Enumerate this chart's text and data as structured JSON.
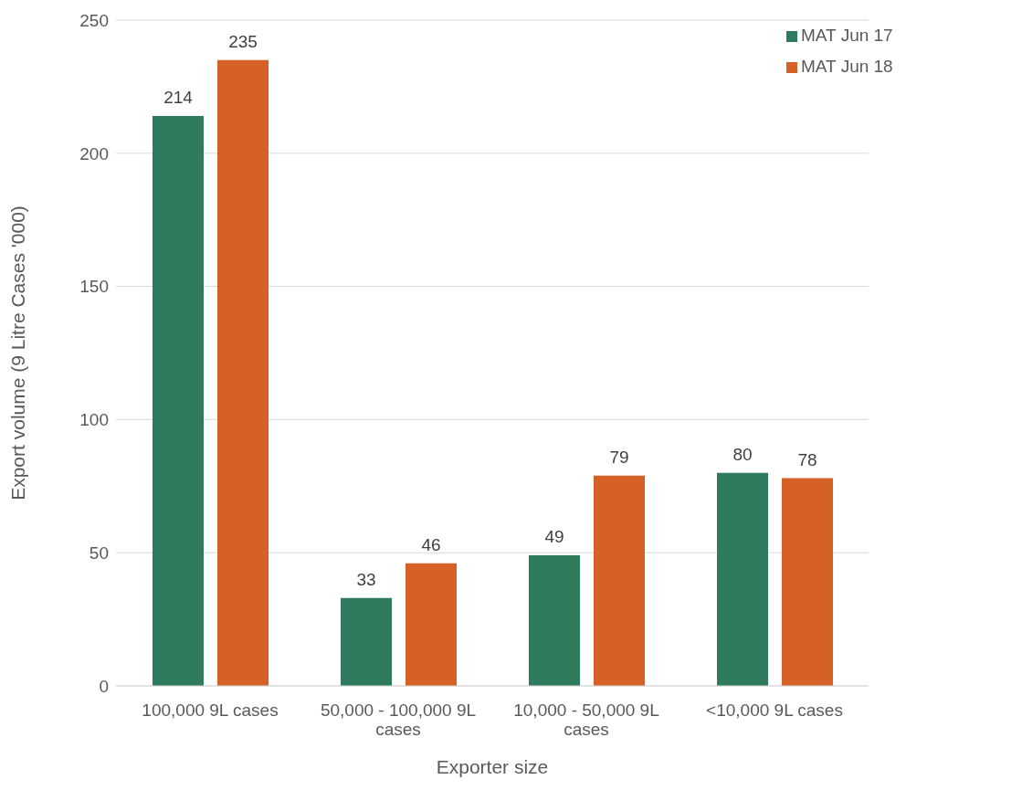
{
  "chart_data": {
    "type": "bar",
    "xlabel": "Exporter size",
    "ylabel": "Export volume (9 Litre Cases '000)",
    "categories": [
      "100,000 9L cases",
      "50,000 - 100,000 9L cases",
      "10,000 - 50,000 9L cases",
      "<10,000 9L cases"
    ],
    "series": [
      {
        "name": "MAT Jun 17",
        "color": "#2e7b5e",
        "values": [
          214,
          33,
          49,
          80
        ]
      },
      {
        "name": "MAT Jun 18",
        "color": "#d56127",
        "values": [
          235,
          46,
          79,
          78
        ]
      }
    ],
    "ylim": [
      0,
      250
    ],
    "yticks": [
      0,
      50,
      100,
      150,
      200,
      250
    ],
    "grid": "y",
    "legend": "top right",
    "data_labels": true
  }
}
